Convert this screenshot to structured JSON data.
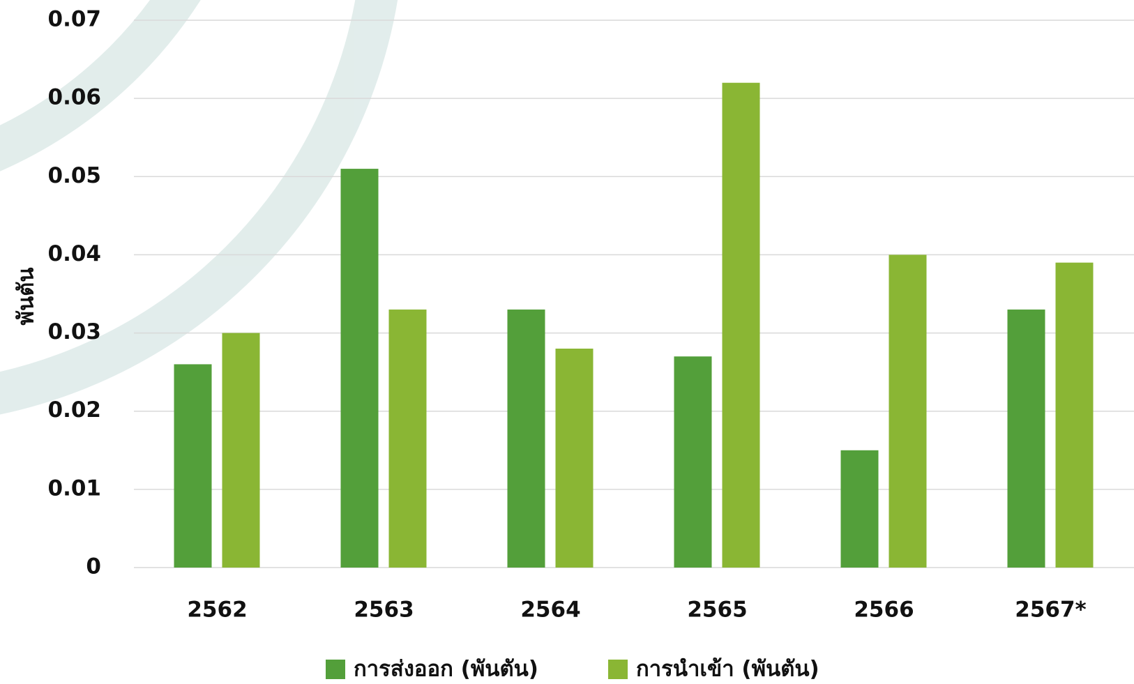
{
  "chart_data": {
    "type": "bar",
    "y_label": "พันตัน",
    "categories": [
      "2562",
      "2563",
      "2564",
      "2565",
      "2566",
      "2567*"
    ],
    "series": [
      {
        "name": "การส่งออก (พันตัน)",
        "color": "#539f3a",
        "values": [
          0.026,
          0.051,
          0.033,
          0.027,
          0.015,
          0.033
        ]
      },
      {
        "name": "การนำเข้า (พันตัน)",
        "color": "#8ab634",
        "values": [
          0.03,
          0.033,
          0.028,
          0.062,
          0.04,
          0.039
        ]
      }
    ],
    "ylim": [
      0,
      0.07
    ],
    "yticks": [
      0,
      0.01,
      0.02,
      0.03,
      0.04,
      0.05,
      0.06,
      0.07
    ],
    "grid": true
  }
}
